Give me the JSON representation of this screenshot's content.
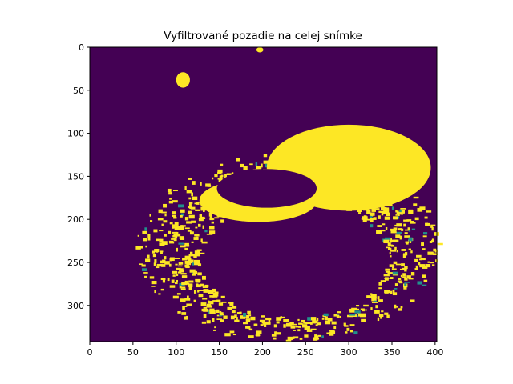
{
  "chart_data": {
    "type": "heatmap",
    "title": "Vyfiltrované pozadie na celej snímke",
    "xlabel": "",
    "ylabel": "",
    "image_size": [
      402,
      342
    ],
    "xlim": [
      0,
      402
    ],
    "ylim": [
      342,
      0
    ],
    "x_ticks": [
      0,
      50,
      100,
      150,
      200,
      250,
      300,
      350,
      400
    ],
    "y_ticks": [
      0,
      50,
      100,
      150,
      200,
      250,
      300
    ],
    "colormap": "viridis",
    "value_range": [
      0,
      1
    ],
    "colors": {
      "background": "#440154",
      "foreground": "#fde725",
      "edge": "#21918c"
    },
    "grid": false,
    "legend": "none",
    "regions": [
      {
        "name": "outer-ring",
        "value": 1,
        "description_shape": "ellipse",
        "center": [
          228,
          232
        ],
        "radii": [
          175,
          110
        ]
      },
      {
        "name": "ring-hole",
        "value": 0,
        "description_shape": "ellipse",
        "center": [
          235,
          245
        ],
        "radii": [
          108,
          68
        ]
      },
      {
        "name": "upper-blob",
        "value": 1,
        "description_shape": "ellipse",
        "center": [
          300,
          140
        ],
        "radii": [
          95,
          50
        ]
      },
      {
        "name": "crescent",
        "value": 1,
        "description_shape": "ellipse",
        "center": [
          195,
          178
        ],
        "radii": [
          68,
          25
        ]
      },
      {
        "name": "small-spot-top",
        "value": 1,
        "description_shape": "ellipse",
        "center": [
          197,
          3
        ],
        "radii": [
          4,
          3
        ]
      },
      {
        "name": "small-spot-left",
        "value": 1,
        "description_shape": "ellipse",
        "center": [
          108,
          38
        ],
        "radii": [
          8,
          9
        ]
      }
    ]
  }
}
